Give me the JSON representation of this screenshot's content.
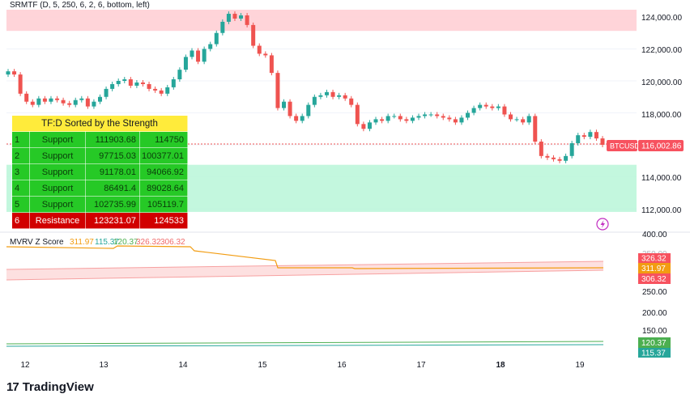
{
  "indicator_title": "SRMTF (D, 5, 250, 6, 2, 6, bottom, left)",
  "price_axis": {
    "ticks": [
      "124,000.00",
      "122,000.00",
      "120,000.00",
      "118,000.00",
      "114,000.00",
      "112,000.00"
    ],
    "last_symbol": "BTCUSD",
    "last_price": "116,002.86",
    "last_price_value": 116002.86
  },
  "mvrv": {
    "label": "MVRV Z Score",
    "values": [
      "311.97",
      "115.37",
      "120.37",
      "326.32",
      "306.32"
    ],
    "value_colors": [
      "#f29c11",
      "#26a69a",
      "#4caf50",
      "#f06b6b",
      "#f06b6b"
    ],
    "axis_ticks": [
      "400.00",
      "350.00",
      "250.00",
      "200.00",
      "150.00"
    ],
    "badges": [
      {
        "text": "326.32",
        "value": 326.32,
        "color": "#f7525f"
      },
      {
        "text": "311.97",
        "value": 311.97,
        "color": "#f29c11"
      },
      {
        "text": "306.32",
        "value": 306.32,
        "color": "#f7525f"
      },
      {
        "text": "120.37",
        "value": 120.37,
        "color": "#4caf50"
      },
      {
        "text": "115.37",
        "value": 115.37,
        "color": "#26a69a"
      }
    ]
  },
  "date_axis": [
    "12",
    "13",
    "14",
    "15",
    "16",
    "17",
    "18",
    "19"
  ],
  "date_axis_bold": "18",
  "table": {
    "title": "TF:D Sorted by the Strength",
    "rows": [
      {
        "idx": "1",
        "type": "Support",
        "low": "111903.68",
        "high": "114750"
      },
      {
        "idx": "2",
        "type": "Support",
        "low": "97715.03",
        "high": "100377.01"
      },
      {
        "idx": "3",
        "type": "Support",
        "low": "91178.01",
        "high": "94066.92"
      },
      {
        "idx": "4",
        "type": "Support",
        "low": "86491.4",
        "high": "89028.64"
      },
      {
        "idx": "5",
        "type": "Support",
        "low": "102735.99",
        "high": "105119.7"
      },
      {
        "idx": "6",
        "type": "Resistance",
        "low": "123231.07",
        "high": "124533"
      }
    ]
  },
  "zones": {
    "resistance": {
      "low": 123231.07,
      "high": 124533,
      "color": "#ffcdd2"
    },
    "support": {
      "low": 111903.68,
      "high": 114750,
      "color": "#b9f6d8"
    }
  },
  "brand": "TradingView",
  "brand_mark": "17",
  "colors": {
    "up": "#26a69a",
    "down": "#ef5350",
    "grid": "#f0f3fa"
  }
}
